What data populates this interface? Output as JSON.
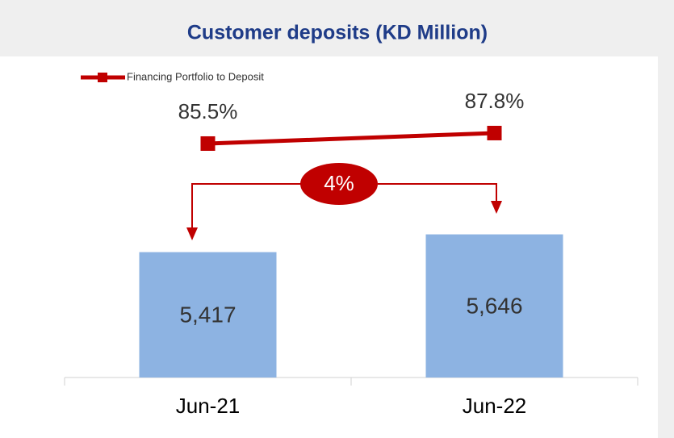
{
  "chart_data": {
    "type": "bar-line",
    "title": "Customer deposits (KD Million)",
    "categories": [
      "Jun-21",
      "Jun-22"
    ],
    "series": [
      {
        "name": "Customer deposits",
        "type": "bar",
        "color": "#8db3e2",
        "values": [
          5417,
          5646
        ],
        "value_labels": [
          "5,417",
          "5,646"
        ]
      },
      {
        "name": "Financing Portfolio to Deposit",
        "type": "line",
        "axis": "y2",
        "color": "#c00000",
        "values": [
          85.5,
          87.8
        ],
        "value_labels": [
          "85.5%",
          "87.8%"
        ]
      }
    ],
    "ylim": [
      3800,
      7670
    ],
    "y2lim": [
      34.2,
      100
    ],
    "annotation": "4%",
    "legend": "top-left"
  }
}
